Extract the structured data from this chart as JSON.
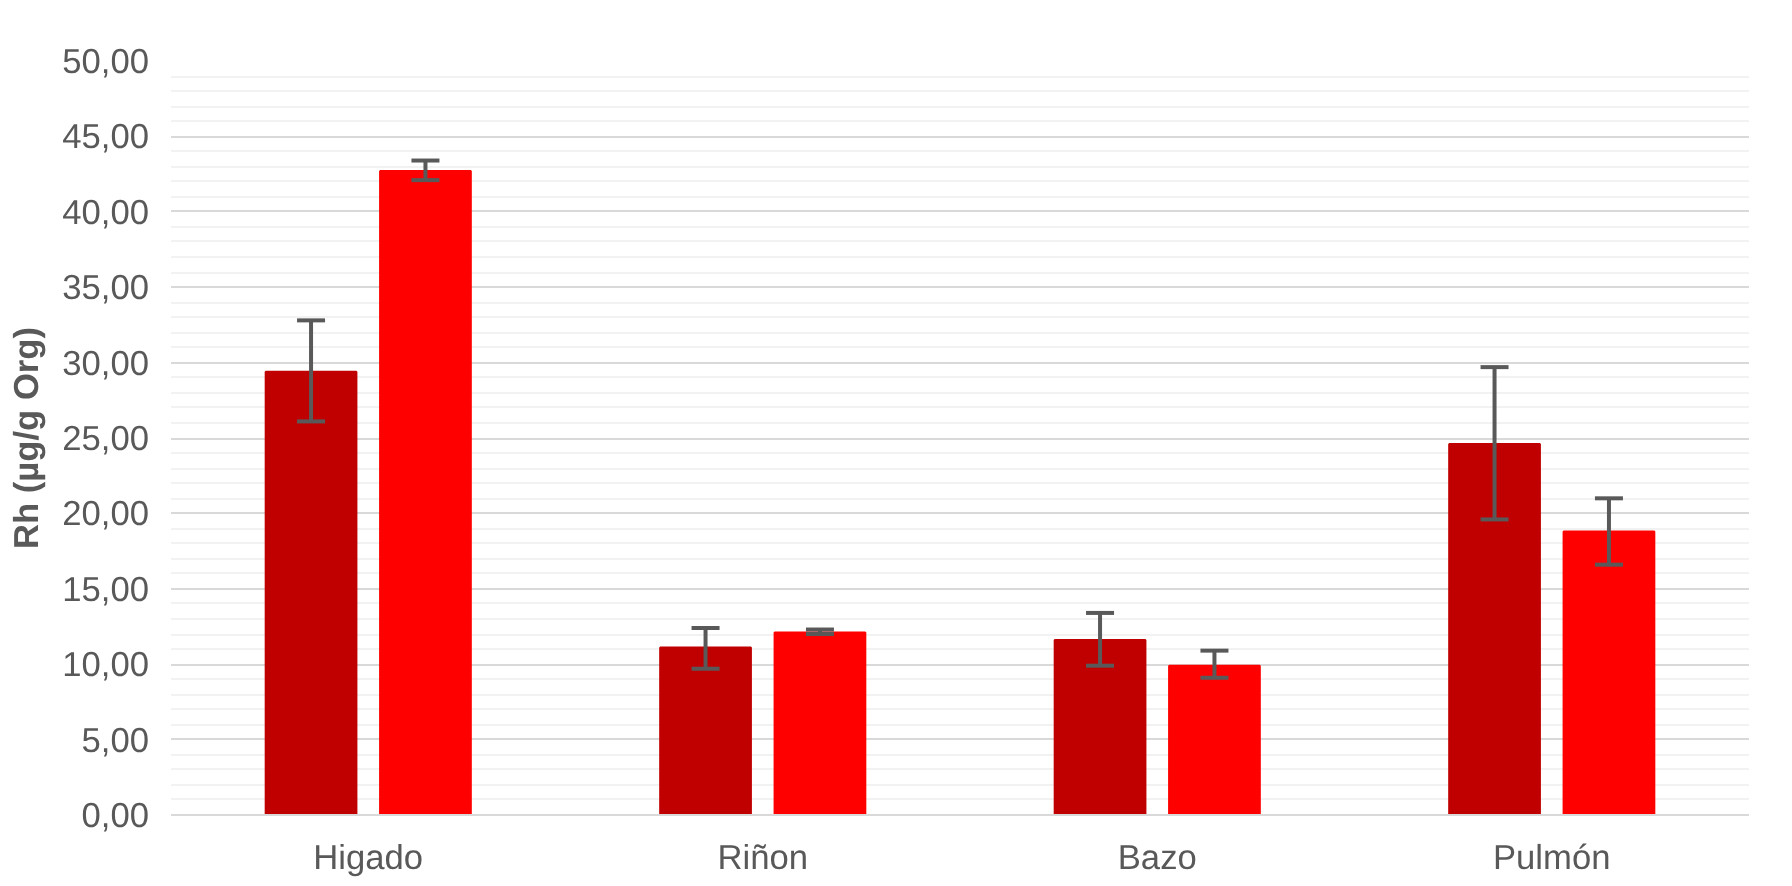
{
  "chart_data": {
    "type": "bar",
    "ylabel": "Rh (µg/g Org)",
    "categories": [
      "Higado",
      "Riñon",
      "Bazo",
      "Pulmón"
    ],
    "series": [
      {
        "color": "#c00000",
        "values": [
          29.4,
          11.1,
          11.6,
          24.6
        ],
        "errors": [
          [
            26.1,
            32.8
          ],
          [
            9.7,
            12.4
          ],
          [
            9.9,
            13.4
          ],
          [
            19.6,
            29.7
          ]
        ]
      },
      {
        "color": "#ff0000",
        "values": [
          42.7,
          12.1,
          9.9,
          18.8
        ],
        "errors": [
          [
            42.1,
            43.4
          ],
          [
            12.0,
            12.3
          ],
          [
            9.1,
            10.9
          ],
          [
            16.6,
            21.0
          ]
        ]
      }
    ],
    "ylim": [
      0,
      50
    ],
    "yticks": [
      {
        "value": 0,
        "label": "0,00"
      },
      {
        "value": 5,
        "label": "5,00"
      },
      {
        "value": 10,
        "label": "10,00"
      },
      {
        "value": 15,
        "label": "15,00"
      },
      {
        "value": 20,
        "label": "20,00"
      },
      {
        "value": 25,
        "label": "25,00"
      },
      {
        "value": 30,
        "label": "30,00"
      },
      {
        "value": 35,
        "label": "35,00"
      },
      {
        "value": 40,
        "label": "40,00"
      },
      {
        "value": 45,
        "label": "45,00"
      },
      {
        "value": 50,
        "label": "50,00"
      }
    ],
    "grid": "y"
  }
}
